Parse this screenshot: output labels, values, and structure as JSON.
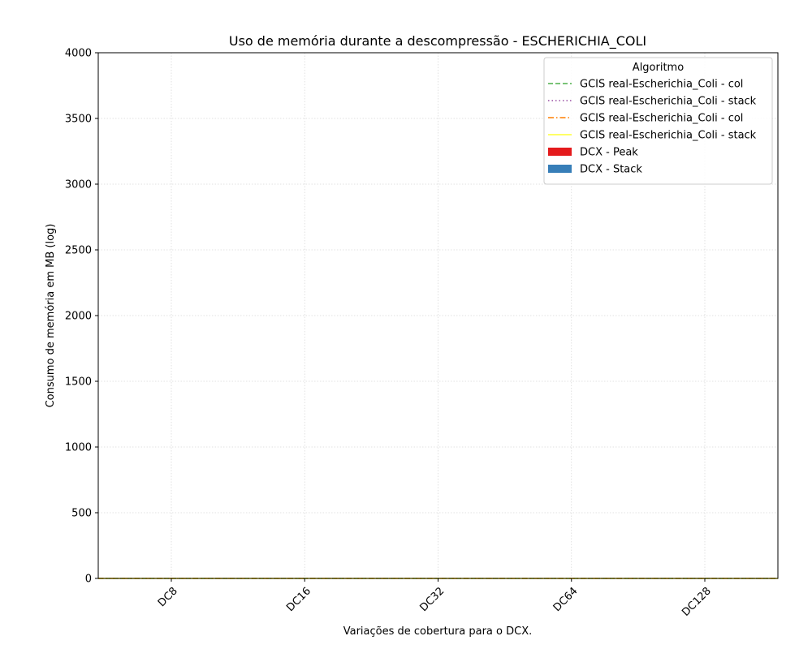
{
  "chart_data": {
    "type": "bar",
    "title": "Uso de memória durante a descompressão -  ESCHERICHIA_COLI",
    "xlabel": "Variações de cobertura para o DCX.",
    "ylabel": "Consumo de memória em MB (log)",
    "categories": [
      "DC8",
      "DC16",
      "DC32",
      "DC64",
      "DC128"
    ],
    "ylim": [
      0,
      4000
    ],
    "yticks": [
      0,
      500,
      1000,
      1500,
      2000,
      2500,
      3000,
      3500,
      4000
    ],
    "grid": true,
    "legend": {
      "title": "Algoritmo",
      "placement": "top-right"
    },
    "bar_series": [
      {
        "name": "DCX - Peak",
        "color": "#e41a1c",
        "values": [
          0,
          0,
          0,
          0,
          0
        ]
      },
      {
        "name": "DCX - Stack",
        "color": "#377eb8",
        "values": [
          0,
          0,
          0,
          0,
          0
        ]
      }
    ],
    "line_series": [
      {
        "name": "GCIS real-Escherichia_Coli - col",
        "color": "#4daf4a",
        "style": "dashed",
        "value": 0
      },
      {
        "name": "GCIS real-Escherichia_Coli - stack",
        "color": "#984ea3",
        "style": "dotted",
        "value": 0
      },
      {
        "name": "GCIS real-Escherichia_Coli - col",
        "color": "#ff7f00",
        "style": "dashdot",
        "value": 0
      },
      {
        "name": "GCIS real-Escherichia_Coli - stack",
        "color": "#ffff33",
        "style": "solid",
        "value": 0
      }
    ]
  }
}
